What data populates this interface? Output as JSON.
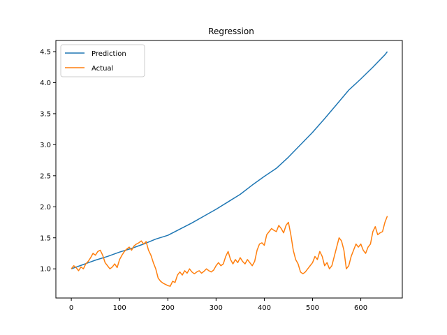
{
  "chart_data": {
    "type": "line",
    "title": "Regression",
    "xlabel": "",
    "ylabel": "",
    "xlim": [
      -32,
      686
    ],
    "ylim": [
      0.53,
      4.68
    ],
    "x_ticks": [
      0,
      100,
      200,
      300,
      400,
      500,
      600
    ],
    "y_ticks": [
      1.0,
      1.5,
      2.0,
      2.5,
      3.0,
      3.5,
      4.0,
      4.5
    ],
    "x_tick_labels": [
      "0",
      "100",
      "200",
      "300",
      "400",
      "500",
      "600"
    ],
    "y_tick_labels": [
      "1.0",
      "1.5",
      "2.0",
      "2.5",
      "3.0",
      "3.5",
      "4.0",
      "4.5"
    ],
    "grid": false,
    "legend_position": "upper-left",
    "series": [
      {
        "name": "Prediction",
        "color": "#1f77b4",
        "x": [
          0,
          25,
          50,
          75,
          100,
          125,
          150,
          175,
          200,
          225,
          250,
          275,
          300,
          325,
          350,
          375,
          400,
          425,
          450,
          475,
          500,
          525,
          550,
          575,
          600,
          625,
          650,
          655
        ],
        "y": [
          1.0,
          1.07,
          1.14,
          1.2,
          1.27,
          1.33,
          1.4,
          1.48,
          1.54,
          1.64,
          1.74,
          1.85,
          1.96,
          2.08,
          2.2,
          2.35,
          2.49,
          2.62,
          2.8,
          3.0,
          3.2,
          3.42,
          3.65,
          3.88,
          4.06,
          4.25,
          4.45,
          4.5
        ]
      },
      {
        "name": "Actual",
        "color": "#ff7f0e",
        "x": [
          0,
          5,
          10,
          15,
          20,
          25,
          30,
          35,
          40,
          45,
          50,
          55,
          60,
          65,
          70,
          75,
          80,
          85,
          90,
          95,
          100,
          105,
          110,
          115,
          120,
          125,
          130,
          135,
          140,
          145,
          150,
          155,
          160,
          165,
          170,
          175,
          180,
          185,
          190,
          195,
          200,
          205,
          210,
          215,
          220,
          225,
          230,
          235,
          240,
          245,
          250,
          255,
          260,
          265,
          270,
          275,
          280,
          285,
          290,
          295,
          300,
          305,
          310,
          315,
          320,
          325,
          330,
          335,
          340,
          345,
          350,
          355,
          360,
          365,
          370,
          375,
          380,
          385,
          390,
          395,
          400,
          405,
          410,
          415,
          420,
          425,
          430,
          435,
          440,
          445,
          450,
          455,
          460,
          465,
          470,
          475,
          480,
          485,
          490,
          495,
          500,
          505,
          510,
          515,
          520,
          525,
          530,
          535,
          540,
          545,
          550,
          555,
          560,
          565,
          570,
          575,
          580,
          585,
          590,
          595,
          600,
          605,
          610,
          615,
          620,
          625,
          630,
          635,
          640,
          645,
          650,
          655
        ],
        "y": [
          1.0,
          1.05,
          1.02,
          0.97,
          1.03,
          1.0,
          1.08,
          1.12,
          1.18,
          1.25,
          1.22,
          1.28,
          1.3,
          1.22,
          1.1,
          1.05,
          1.0,
          1.03,
          1.08,
          1.02,
          1.15,
          1.22,
          1.28,
          1.32,
          1.35,
          1.3,
          1.37,
          1.4,
          1.42,
          1.45,
          1.4,
          1.44,
          1.3,
          1.22,
          1.1,
          1.0,
          0.85,
          0.8,
          0.77,
          0.75,
          0.73,
          0.72,
          0.8,
          0.78,
          0.9,
          0.95,
          0.9,
          0.97,
          0.93,
          1.0,
          0.95,
          0.92,
          0.95,
          0.97,
          0.93,
          0.96,
          1.0,
          0.97,
          0.95,
          0.98,
          1.05,
          1.1,
          1.05,
          1.08,
          1.2,
          1.28,
          1.15,
          1.08,
          1.15,
          1.1,
          1.18,
          1.12,
          1.08,
          1.15,
          1.1,
          1.05,
          1.12,
          1.3,
          1.4,
          1.42,
          1.38,
          1.55,
          1.6,
          1.65,
          1.62,
          1.6,
          1.7,
          1.65,
          1.58,
          1.7,
          1.75,
          1.55,
          1.3,
          1.15,
          1.08,
          0.95,
          0.92,
          0.95,
          1.0,
          1.05,
          1.1,
          1.2,
          1.15,
          1.28,
          1.2,
          1.05,
          1.1,
          1.0,
          1.05,
          1.2,
          1.35,
          1.5,
          1.45,
          1.3,
          1.0,
          1.05,
          1.2,
          1.3,
          1.4,
          1.35,
          1.4,
          1.3,
          1.25,
          1.35,
          1.4,
          1.6,
          1.68,
          1.55,
          1.58,
          1.6,
          1.75,
          1.85
        ]
      }
    ]
  }
}
